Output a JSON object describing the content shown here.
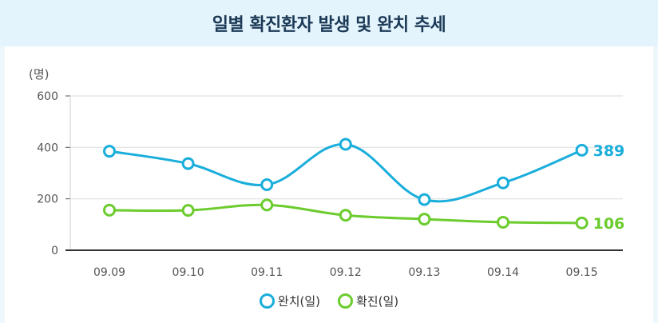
{
  "title": "일별 확진환자 발생 및 완치 추세",
  "chart_data": {
    "type": "line",
    "title": "일별 확진환자 발생 및 완치 추세",
    "ylabel": "(명)",
    "xlabel": "",
    "ylim": [
      0,
      600
    ],
    "yticks": [
      0,
      200,
      400,
      600
    ],
    "categories": [
      "09.09",
      "09.10",
      "09.11",
      "09.12",
      "09.13",
      "09.14",
      "09.15"
    ],
    "series": [
      {
        "name": "완치(일)",
        "color": "#1aaedb",
        "values": [
          385,
          337,
          255,
          412,
          197,
          262,
          389
        ],
        "end_label": "389"
      },
      {
        "name": "확진(일)",
        "color": "#6ccc2e",
        "values": [
          156,
          155,
          176,
          136,
          121,
          109,
          106
        ],
        "end_label": "106"
      }
    ]
  },
  "legend": [
    {
      "label": "완치(일)",
      "color": "#1aaedb"
    },
    {
      "label": "확진(일)",
      "color": "#6ccc2e"
    }
  ]
}
